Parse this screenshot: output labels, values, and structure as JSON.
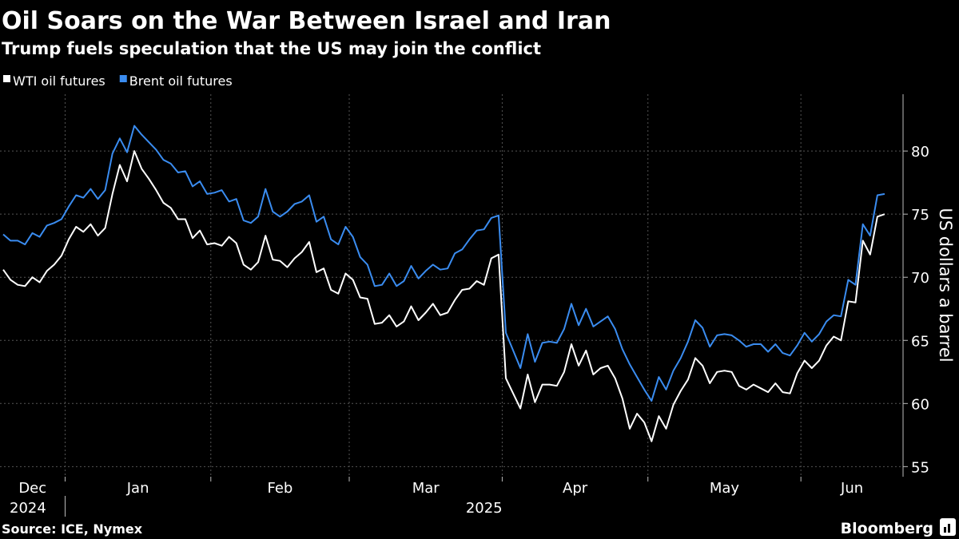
{
  "chart_data": {
    "type": "line",
    "title": "Oil Soars on the War Between Israel and Iran",
    "subtitle": "Trump fuels speculation that the US may join the conflict",
    "y_axis_label": "US dollars a barrel",
    "source": "Source: ICE, Nymex",
    "brand": "Bloomberg",
    "categories": [
      "Dec",
      null,
      null,
      null,
      null,
      null,
      null,
      null,
      null,
      "Jan",
      null,
      null,
      null,
      null,
      null,
      null,
      null,
      null,
      null,
      null,
      null,
      null,
      null,
      null,
      null,
      null,
      null,
      null,
      null,
      "Feb",
      null,
      null,
      null,
      null,
      null,
      null,
      null,
      null,
      null,
      null,
      null,
      null,
      null,
      null,
      null,
      null,
      null,
      null,
      "Mar",
      null,
      null,
      null,
      null,
      null,
      null,
      null,
      null,
      null,
      null,
      null,
      null,
      null,
      null,
      null,
      null,
      null,
      null,
      null,
      null,
      "Apr",
      null,
      null,
      null,
      null,
      null,
      null,
      null,
      null,
      null,
      null,
      null,
      null,
      null,
      null,
      null,
      null,
      null,
      null,
      null,
      "May",
      null,
      null,
      null,
      null,
      null,
      null,
      null,
      null,
      null,
      null,
      null,
      null,
      null,
      null,
      null,
      null,
      null,
      null,
      null,
      null,
      "Jun",
      null,
      null,
      null,
      null,
      null,
      null,
      null,
      null,
      null,
      null,
      null
    ],
    "x_years": [
      "2024",
      "2025"
    ],
    "series": [
      {
        "name": "WTI oil futures",
        "color": "#ffffff",
        "values": [
          70.6,
          69.8,
          69.4,
          69.3,
          70.0,
          69.6,
          70.5,
          71.0,
          71.7,
          73.0,
          74.0,
          73.6,
          74.2,
          73.3,
          73.9,
          76.6,
          78.9,
          77.6,
          80.0,
          78.6,
          77.8,
          76.9,
          75.9,
          75.5,
          74.6,
          74.6,
          73.1,
          73.7,
          72.6,
          72.7,
          72.5,
          73.2,
          72.7,
          71.0,
          70.6,
          71.2,
          73.3,
          71.4,
          71.3,
          70.8,
          71.5,
          72.0,
          72.8,
          70.4,
          70.7,
          69.0,
          68.7,
          70.3,
          69.8,
          68.4,
          68.3,
          66.3,
          66.4,
          67.0,
          66.1,
          66.5,
          67.7,
          66.6,
          67.2,
          67.9,
          67.0,
          67.2,
          68.2,
          69.0,
          69.1,
          69.7,
          69.4,
          71.5,
          71.8,
          62.0,
          60.8,
          59.6,
          62.3,
          60.1,
          61.5,
          61.5,
          61.4,
          62.5,
          64.7,
          63.0,
          64.2,
          62.3,
          62.8,
          63.0,
          62.0,
          60.4,
          58.0,
          59.2,
          58.5,
          57.0,
          59.0,
          58.0,
          59.9,
          61.0,
          61.9,
          63.6,
          63.0,
          61.6,
          62.5,
          62.6,
          62.5,
          61.4,
          61.1,
          61.5,
          61.2,
          60.9,
          61.6,
          60.9,
          60.8,
          62.4,
          63.4,
          62.8,
          63.4,
          64.6,
          65.3,
          65.0,
          68.1,
          68.0,
          72.9,
          71.8,
          74.8,
          75.0
        ]
      },
      {
        "name": "Brent oil futures",
        "color": "#3a8cf0",
        "values": [
          73.4,
          72.9,
          72.9,
          72.6,
          73.5,
          73.2,
          74.1,
          74.3,
          74.6,
          75.6,
          76.5,
          76.3,
          77.0,
          76.2,
          76.9,
          79.8,
          81.0,
          79.9,
          82.0,
          81.3,
          80.7,
          80.1,
          79.3,
          79.0,
          78.3,
          78.4,
          77.2,
          77.6,
          76.6,
          76.7,
          76.9,
          76.0,
          76.2,
          74.5,
          74.3,
          74.8,
          77.0,
          75.2,
          74.8,
          75.2,
          75.8,
          76.0,
          76.5,
          74.4,
          74.8,
          73.0,
          72.6,
          74.0,
          73.2,
          71.6,
          71.0,
          69.3,
          69.4,
          70.3,
          69.3,
          69.7,
          70.9,
          69.9,
          70.5,
          71.0,
          70.6,
          70.7,
          71.9,
          72.2,
          73.0,
          73.7,
          73.8,
          74.7,
          74.9,
          65.6,
          64.2,
          62.8,
          65.5,
          63.3,
          64.8,
          64.9,
          64.8,
          65.9,
          67.9,
          66.2,
          67.5,
          66.1,
          66.5,
          66.9,
          65.9,
          64.3,
          63.1,
          62.1,
          61.1,
          60.2,
          62.1,
          61.1,
          62.6,
          63.6,
          64.9,
          66.6,
          66.0,
          64.5,
          65.4,
          65.5,
          65.4,
          65.0,
          64.5,
          64.7,
          64.7,
          64.1,
          64.7,
          64.0,
          63.8,
          64.6,
          65.6,
          64.9,
          65.5,
          66.5,
          67.0,
          66.9,
          69.8,
          69.4,
          74.2,
          73.3,
          76.5,
          76.6
        ]
      }
    ],
    "ylim": [
      54.2,
      84.5
    ],
    "yticks": [
      55,
      60,
      65,
      70,
      75,
      80
    ],
    "grid": true,
    "legend": "top-left"
  }
}
